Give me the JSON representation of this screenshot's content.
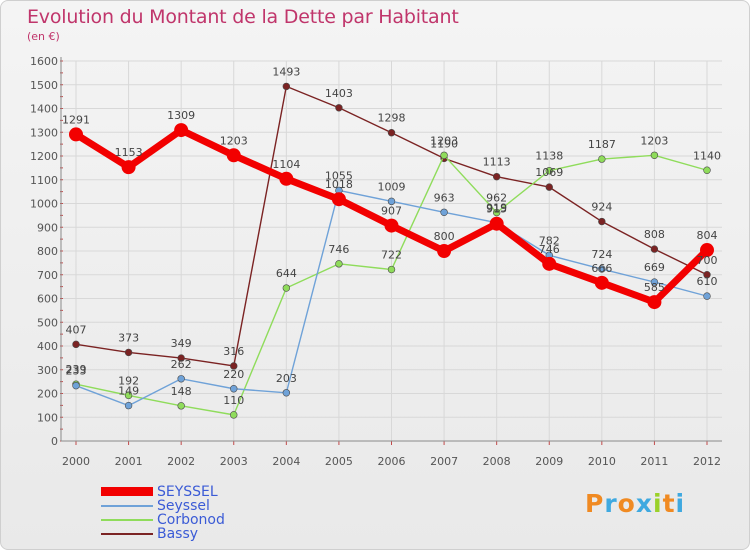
{
  "title": "Evolution du Montant de la Dette par Habitant",
  "subtitle": "(en €)",
  "brand": {
    "letters": [
      "P",
      "r",
      "o",
      "x",
      "i",
      "t",
      "i"
    ],
    "colors": [
      "#f08a22",
      "#3fa9e0",
      "#f08a22",
      "#3fa9e0",
      "#9bd12a",
      "#f08a22",
      "#3fa9e0"
    ]
  },
  "chart_data": {
    "type": "line",
    "x": [
      "2000",
      "2001",
      "2002",
      "2003",
      "2004",
      "2005",
      "2006",
      "2007",
      "2008",
      "2009",
      "2010",
      "2011",
      "2012"
    ],
    "ylim": [
      0,
      1600
    ],
    "yticks": [
      "0",
      "100",
      "200",
      "300",
      "400",
      "500",
      "600",
      "700",
      "800",
      "900",
      "1000",
      "1100",
      "1200",
      "1300",
      "1400",
      "1500",
      "1600"
    ],
    "grid": true,
    "legend_position": "bottom-left",
    "series": [
      {
        "name": "Bassy",
        "color": "#7b2323",
        "values": [
          407,
          373,
          349,
          316,
          1493,
          1403,
          1298,
          1190,
          1113,
          1069,
          924,
          808,
          700
        ],
        "labels": [
          "407",
          "373",
          "349",
          "316",
          "1493",
          "1403",
          "1298",
          "1190",
          "1113",
          "1069",
          "924",
          "808",
          "700"
        ]
      },
      {
        "name": "Corbonod",
        "color": "#8fdc5b",
        "values": [
          239,
          192,
          148,
          110,
          644,
          746,
          722,
          1203,
          962,
          1138,
          1187,
          1203,
          1140
        ],
        "labels": [
          "239",
          "192",
          "148",
          "110",
          "644",
          "746",
          "722",
          "1203",
          "962",
          "1138",
          "1187",
          "1203",
          "1140"
        ]
      },
      {
        "name": "Seyssel",
        "color": "#6fa2d8",
        "values": [
          233,
          149,
          262,
          220,
          203,
          1055,
          1009,
          963,
          919,
          782,
          724,
          669,
          610
        ],
        "labels": [
          "233",
          "149",
          "262",
          "220",
          "203",
          "1055",
          "1009",
          "963",
          "919",
          "782",
          "724",
          "669",
          "610"
        ]
      },
      {
        "name": "SEYSSEL",
        "color": "#f20000",
        "values": [
          1291,
          1153,
          1309,
          1203,
          1104,
          1018,
          907,
          800,
          915,
          746,
          666,
          585,
          804
        ],
        "labels": [
          "1291",
          "1153",
          "1309",
          "1203",
          "1104",
          "1018",
          "907",
          "800",
          "915",
          "746",
          "666",
          "585",
          "804"
        ]
      }
    ],
    "legend_order": [
      "SEYSSEL",
      "Seyssel",
      "Corbonod",
      "Bassy"
    ]
  }
}
